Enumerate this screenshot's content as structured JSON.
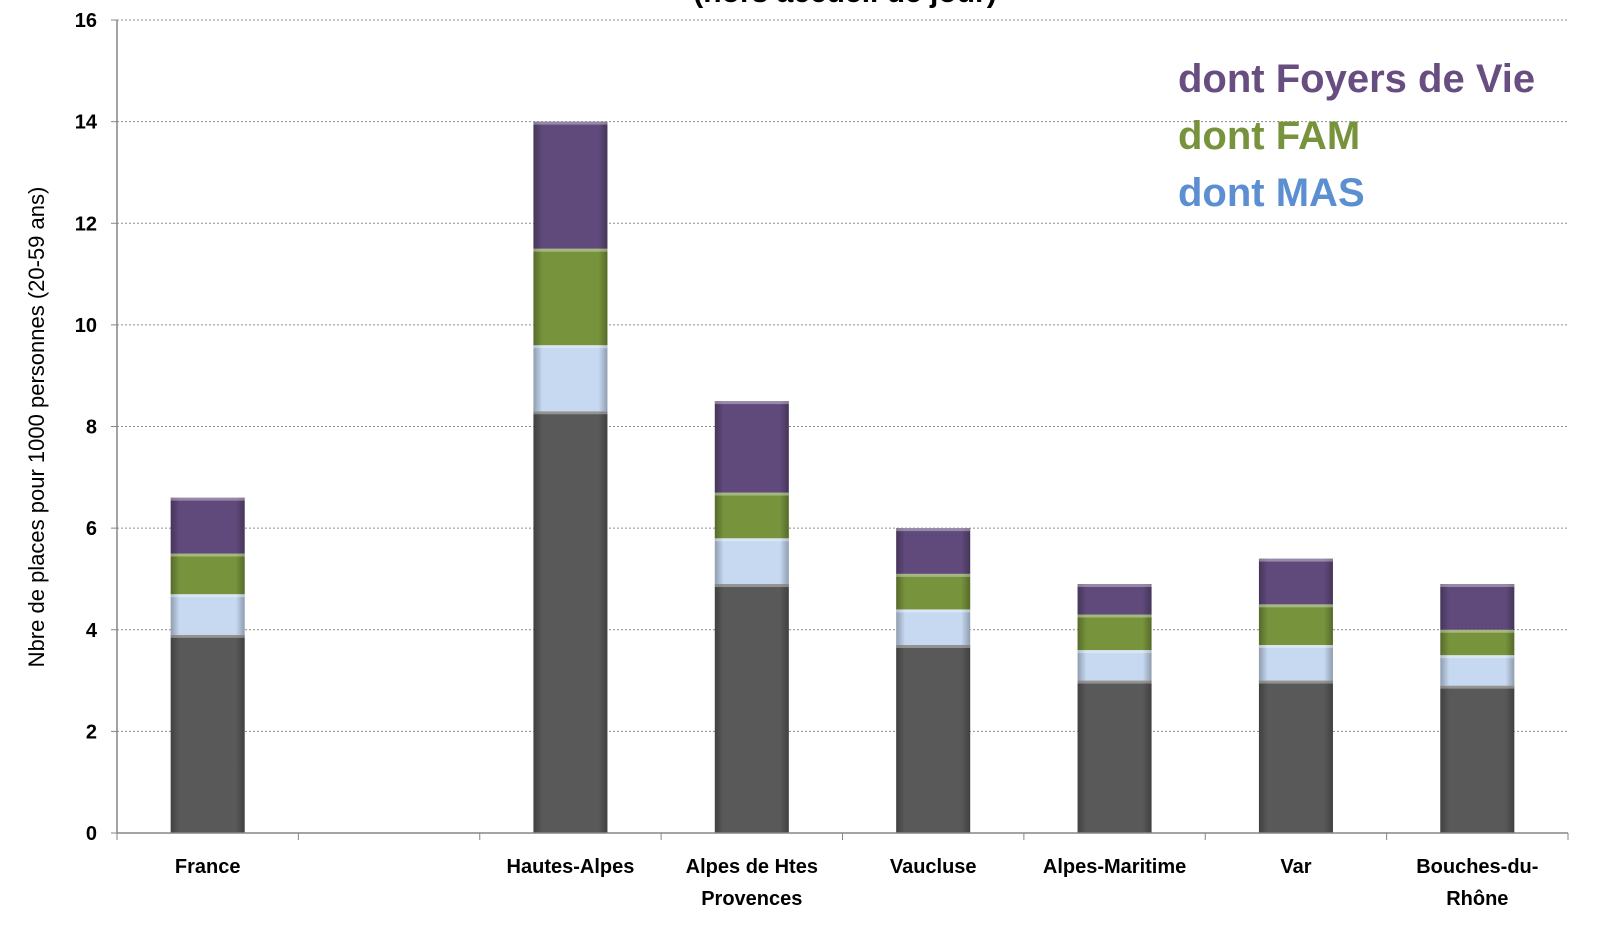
{
  "chart_data": {
    "type": "bar",
    "stacked": true,
    "title": "(hors accueil de jour)",
    "xlabel": "",
    "ylabel": "Nbre de places pour 1000 personnes (20-59 ans)",
    "ylim": [
      0,
      16
    ],
    "yticks": [
      0,
      2,
      4,
      6,
      8,
      10,
      12,
      14,
      16
    ],
    "grid": true,
    "legend_position": "top-right",
    "category_slots": [
      "France",
      "",
      "Hautes-Alpes",
      "Alpes de Htes Provences",
      "Vaucluse",
      "Alpes-Maritime",
      "Var",
      "Bouches-du-Rhône"
    ],
    "category_label_lines": [
      [
        "France"
      ],
      [],
      [
        "Hautes-Alpes"
      ],
      [
        "Alpes de Htes",
        "Provences"
      ],
      [
        "Vaucluse"
      ],
      [
        "Alpes-Maritime"
      ],
      [
        "Var"
      ],
      [
        "Bouches-du-",
        "Rhône"
      ]
    ],
    "series": [
      {
        "name": "",
        "color": "#595959",
        "values": [
          3.9,
          null,
          8.3,
          4.9,
          3.7,
          3.0,
          3.0,
          2.9
        ]
      },
      {
        "name": "dont MAS",
        "color": "#c6d9f1",
        "label_color": "#5b8fd1",
        "values": [
          0.8,
          null,
          1.3,
          0.9,
          0.7,
          0.6,
          0.7,
          0.6
        ]
      },
      {
        "name": "dont FAM",
        "color": "#77933c",
        "label_color": "#77933c",
        "values": [
          0.8,
          null,
          1.9,
          0.9,
          0.7,
          0.7,
          0.8,
          0.5
        ]
      },
      {
        "name": "dont Foyers de Vie",
        "color": "#604a7b",
        "label_color": "#674d80",
        "values": [
          1.1,
          null,
          2.5,
          1.8,
          0.9,
          0.6,
          0.9,
          0.9
        ]
      }
    ]
  }
}
